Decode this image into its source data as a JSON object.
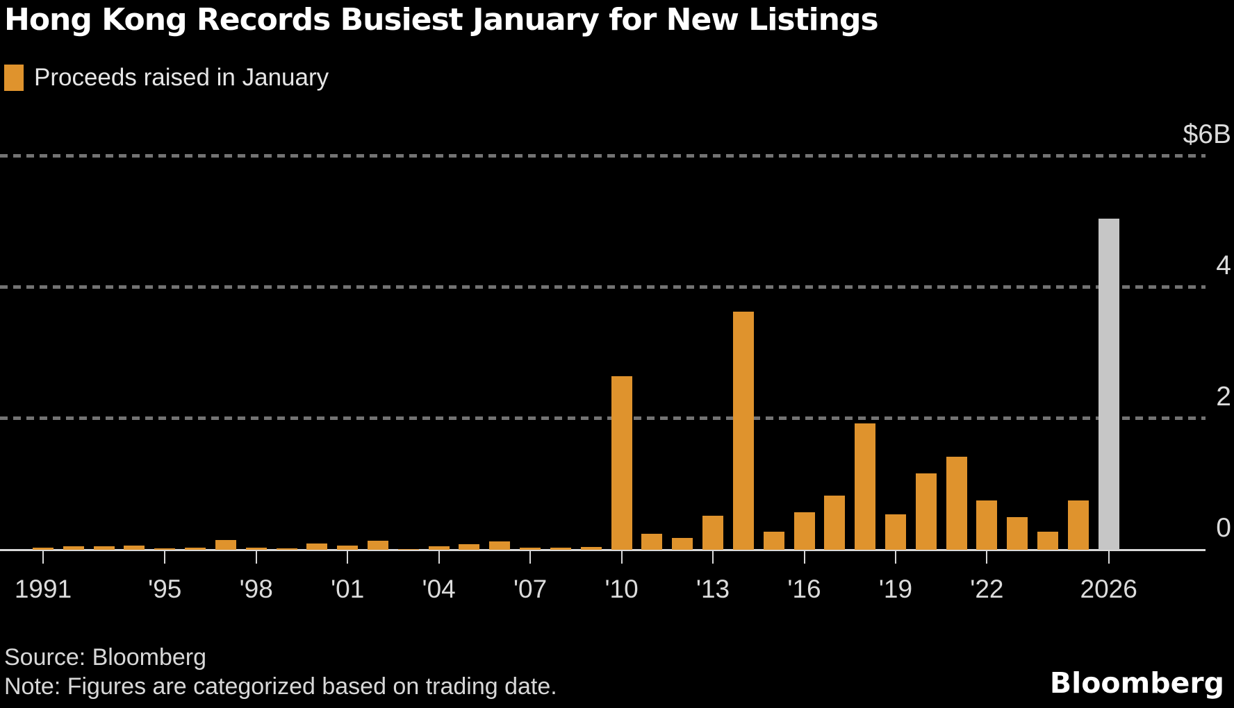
{
  "header": {
    "title": "Hong Kong Records Busiest January for New Listings"
  },
  "chart_data": {
    "type": "bar",
    "title": "Hong Kong Records Busiest January for New Listings",
    "unit": "billions of US dollars",
    "legend": [
      {
        "label": "Proceeds raised in January",
        "color": "#DF932D"
      }
    ],
    "categories": [
      1991,
      1992,
      1993,
      1994,
      1995,
      1996,
      1997,
      1998,
      1999,
      2000,
      2001,
      2002,
      2003,
      2004,
      2005,
      2006,
      2007,
      2008,
      2009,
      2010,
      2011,
      2012,
      2013,
      2014,
      2015,
      2016,
      2017,
      2018,
      2019,
      2020,
      2021,
      2022,
      2023,
      2024,
      2025,
      2026
    ],
    "values": [
      0.03,
      0.05,
      0.05,
      0.06,
      0.02,
      0.03,
      0.15,
      0.03,
      0.02,
      0.1,
      0.06,
      0.14,
      0.01,
      0.05,
      0.09,
      0.13,
      0.03,
      0.03,
      0.04,
      2.65,
      0.24,
      0.18,
      0.52,
      3.63,
      0.28,
      0.57,
      0.83,
      1.93,
      0.54,
      1.16,
      1.42,
      0.75,
      0.5,
      0.28,
      0.75,
      5.05
    ],
    "bar_color": "#DF932D",
    "highlight": {
      "category": 2026,
      "color": "#C6C6C6"
    },
    "ylim": [
      0,
      7
    ],
    "grid": {
      "horizontal_dashed_at": [
        2,
        4,
        6
      ]
    },
    "yticks": [
      {
        "value": 6,
        "label": "$6B"
      },
      {
        "value": 4,
        "label": "4"
      },
      {
        "value": 2,
        "label": "2"
      },
      {
        "value": 0,
        "label": "0"
      }
    ],
    "xtick_labels": [
      {
        "category": 1991,
        "label": "1991"
      },
      {
        "category": 1995,
        "label": "'95"
      },
      {
        "category": 1998,
        "label": "'98"
      },
      {
        "category": 2001,
        "label": "'01"
      },
      {
        "category": 2004,
        "label": "'04"
      },
      {
        "category": 2007,
        "label": "'07"
      },
      {
        "category": 2010,
        "label": "'10"
      },
      {
        "category": 2013,
        "label": "'13"
      },
      {
        "category": 2016,
        "label": "'16"
      },
      {
        "category": 2019,
        "label": "'19"
      },
      {
        "category": 2022,
        "label": "'22"
      },
      {
        "category": 2026,
        "label": "2026"
      }
    ],
    "gridline_color": "#737373",
    "axis_color": "#D9D9D9"
  },
  "footer": {
    "source": "Source: Bloomberg",
    "note": "Note: Figures are categorized based on trading date.",
    "logo": "Bloomberg"
  }
}
